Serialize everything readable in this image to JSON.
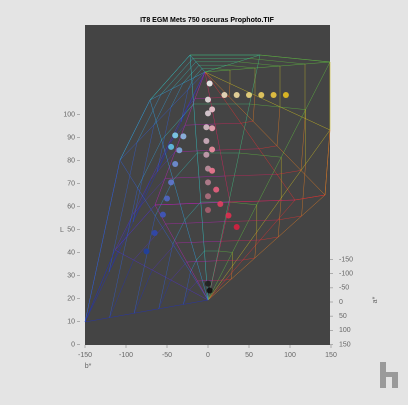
{
  "chart_data": {
    "type": "scatter3d",
    "title": "IT8 EGM Mets 750 oscuras Prophoto.TIF",
    "zlabel": "L",
    "xlabel": "b*",
    "ylabel": "a*",
    "zlim": [
      0,
      110
    ],
    "zticks": [
      0,
      10,
      20,
      30,
      40,
      50,
      60,
      70,
      80,
      90,
      100
    ],
    "xlim": [
      -150,
      150
    ],
    "xticks": [
      -150,
      -100,
      -50,
      0,
      50,
      100,
      150
    ],
    "ylim": [
      -150,
      150
    ],
    "yticks": [
      -150,
      -100,
      -50,
      0,
      50,
      100,
      150
    ],
    "points": {
      "L": [
        90,
        90,
        90,
        90,
        90,
        90,
        95,
        88,
        82,
        76,
        70,
        64,
        58,
        52,
        46,
        40,
        85,
        78,
        70,
        62,
        55,
        50,
        45,
        40,
        72,
        66,
        60,
        52,
        45,
        38,
        30,
        22,
        70,
        65,
        8,
        5
      ],
      "a": [
        0,
        0,
        0,
        0,
        0,
        0,
        0,
        0,
        0,
        0,
        0,
        0,
        0,
        0,
        0,
        0,
        10,
        20,
        30,
        40,
        50,
        60,
        60,
        60,
        0,
        0,
        0,
        0,
        0,
        0,
        0,
        0,
        -20,
        -20,
        0,
        0
      ],
      "b": [
        20,
        35,
        50,
        65,
        80,
        95,
        2,
        0,
        0,
        -2,
        -2,
        -2,
        0,
        0,
        0,
        0,
        5,
        5,
        5,
        5,
        10,
        15,
        25,
        35,
        -30,
        -35,
        -40,
        -45,
        -50,
        -55,
        -65,
        -75,
        -40,
        -45,
        0,
        2
      ],
      "colors": [
        "#f0e0c0",
        "#f0dca0",
        "#f0d880",
        "#eed060",
        "#ecc840",
        "#e8c020",
        "#f4f4f4",
        "#e8e0e0",
        "#e0d0d8",
        "#d8c0c8",
        "#d0b0c0",
        "#c8a0b0",
        "#c090a0",
        "#b88090",
        "#b07080",
        "#a86070",
        "#f0c8d0",
        "#f0a8b8",
        "#f090a0",
        "#f07890",
        "#e86080",
        "#e04060",
        "#e03050",
        "#d82040",
        "#90b8e8",
        "#80a8e0",
        "#7090d8",
        "#6078d0",
        "#5068c8",
        "#4058c0",
        "#3048b0",
        "#2040a0",
        "#80d0f0",
        "#60c0e8",
        "#202020",
        "#101010"
      ]
    }
  }
}
